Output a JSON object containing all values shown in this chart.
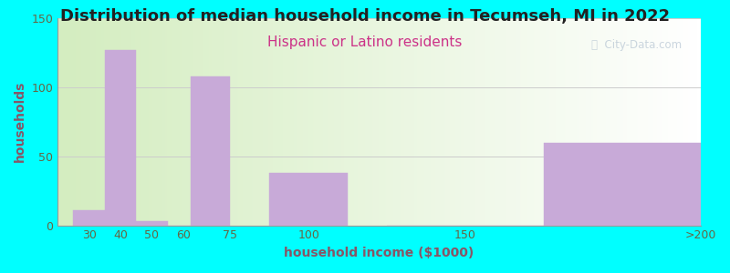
{
  "title": "Distribution of median household income in Tecumseh, MI in 2022",
  "subtitle": "Hispanic or Latino residents",
  "xlabel": "household income ($1000)",
  "ylabel": "households",
  "background_color": "#00FFFF",
  "plot_bg_color_left": "#d4edc0",
  "plot_bg_color_right": "#ffffff",
  "bar_color": "#c8aad8",
  "categories": [
    "30",
    "40",
    "50",
    "60",
    "75",
    "100",
    "150",
    ">200"
  ],
  "bar_lefts": [
    25,
    35,
    45,
    55,
    62.5,
    87.5,
    125,
    175
  ],
  "bar_widths": [
    10,
    10,
    10,
    10,
    12.5,
    25,
    50,
    50
  ],
  "values": [
    11,
    127,
    3,
    0,
    108,
    38,
    0,
    60
  ],
  "xlim": [
    20,
    225
  ],
  "xtick_positions": [
    30,
    40,
    50,
    60,
    75,
    100,
    150,
    225
  ],
  "xtick_labels": [
    "30",
    "40",
    "50",
    "60",
    "75",
    "100",
    "150",
    ">200"
  ],
  "ylim": [
    0,
    150
  ],
  "yticks": [
    0,
    50,
    100,
    150
  ],
  "title_fontsize": 13,
  "subtitle_fontsize": 11,
  "subtitle_color": "#cc3388",
  "axis_label_color": "#885566",
  "tick_label_color": "#666644",
  "title_color": "#222222",
  "watermark_text": "ⓘ  City-Data.com",
  "watermark_color": "#aabbcc",
  "watermark_alpha": 0.6
}
